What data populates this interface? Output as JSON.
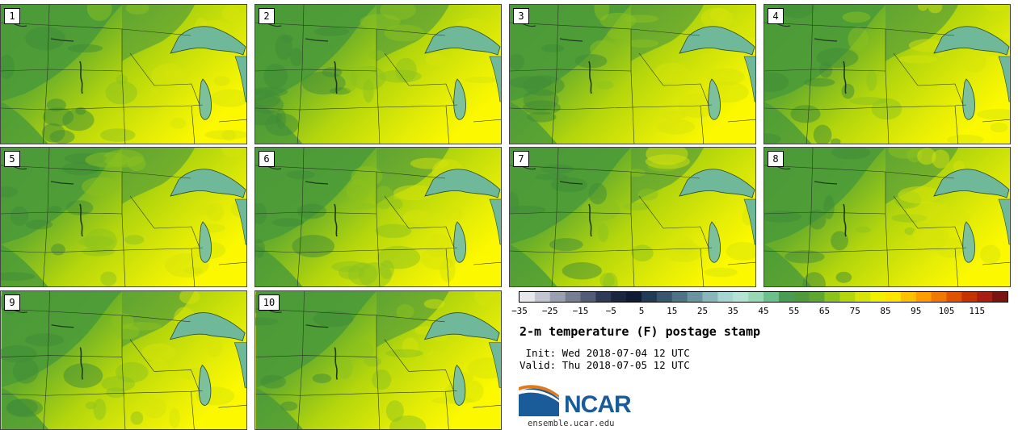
{
  "panels": [
    {
      "label": "1"
    },
    {
      "label": "2"
    },
    {
      "label": "3"
    },
    {
      "label": "4"
    },
    {
      "label": "5"
    },
    {
      "label": "6"
    },
    {
      "label": "7"
    },
    {
      "label": "8"
    },
    {
      "label": "9"
    },
    {
      "label": "10"
    }
  ],
  "colorbar": {
    "tick_labels": [
      "−35",
      "−25",
      "−15",
      "−5",
      "5",
      "15",
      "25",
      "35",
      "45",
      "55",
      "65",
      "75",
      "85",
      "95",
      "105",
      "115"
    ],
    "colors": [
      "#e6e8ee",
      "#c2c6d0",
      "#9aa0b0",
      "#767e92",
      "#525c74",
      "#2e3a56",
      "#1a2640",
      "#0e1a33",
      "#213a55",
      "#36566e",
      "#4e7384",
      "#6a94a0",
      "#88b6ba",
      "#a6d6d2",
      "#b4e3d6",
      "#96d9b4",
      "#6cc08c",
      "#4a9c52",
      "#4f9a3a",
      "#5fa830",
      "#8cc21e",
      "#b4d60c",
      "#d6e40a",
      "#f0f000",
      "#ffe400",
      "#ffc000",
      "#ff9c00",
      "#f07800",
      "#de5200",
      "#c43200",
      "#a81e10",
      "#7a1410"
    ]
  },
  "title": "2-m temperature (F) postage stamp",
  "init": " Init: Wed 2018-07-04 12 UTC",
  "valid": "Valid: Thu 2018-07-05 12 UTC",
  "logo": {
    "text": "NCAR",
    "site": "ensemble.ucar.edu"
  }
}
